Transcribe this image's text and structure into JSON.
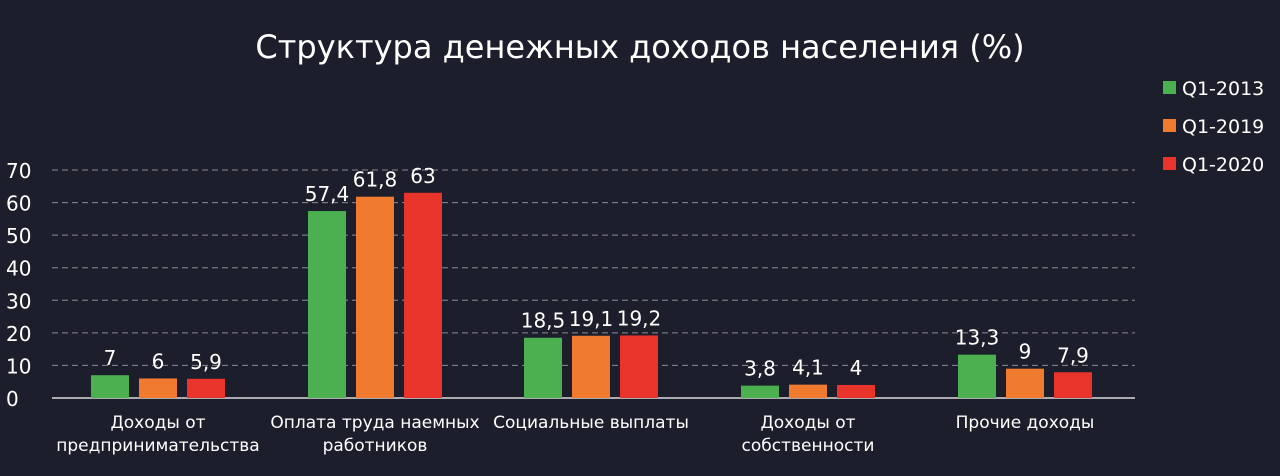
{
  "chart_data": {
    "type": "bar",
    "title": "Структура денежных доходов населения (%)",
    "categories": [
      [
        "Доходы от",
        "предпринимательства"
      ],
      [
        "Оплата труда наемных",
        "работников"
      ],
      [
        "Социальные выплаты"
      ],
      [
        "Доходы от",
        "собственности"
      ],
      [
        "Прочие доходы"
      ]
    ],
    "series": [
      {
        "name": "Q1-2013",
        "color": "#4caf50",
        "values": [
          7,
          57.4,
          18.5,
          3.8,
          13.3
        ],
        "labels": [
          "7",
          "57,4",
          "18,5",
          "3,8",
          "13,3"
        ]
      },
      {
        "name": "Q1-2019",
        "color": "#f07a2e",
        "values": [
          6,
          61.8,
          19.1,
          4.1,
          9
        ],
        "labels": [
          "6",
          "61,8",
          "19,1",
          "4,1",
          "9"
        ]
      },
      {
        "name": "Q1-2020",
        "color": "#e8342a",
        "values": [
          5.9,
          63,
          19.2,
          4,
          7.9
        ],
        "labels": [
          "5,9",
          "63",
          "19,2",
          "4",
          "7,9"
        ]
      }
    ],
    "y_ticks": [
      "0",
      "10",
      "20",
      "30",
      "40",
      "50",
      "60",
      "70"
    ],
    "ylim": [
      0,
      70
    ],
    "grid": true,
    "legend": "top-right",
    "xlabel": "",
    "ylabel": ""
  }
}
